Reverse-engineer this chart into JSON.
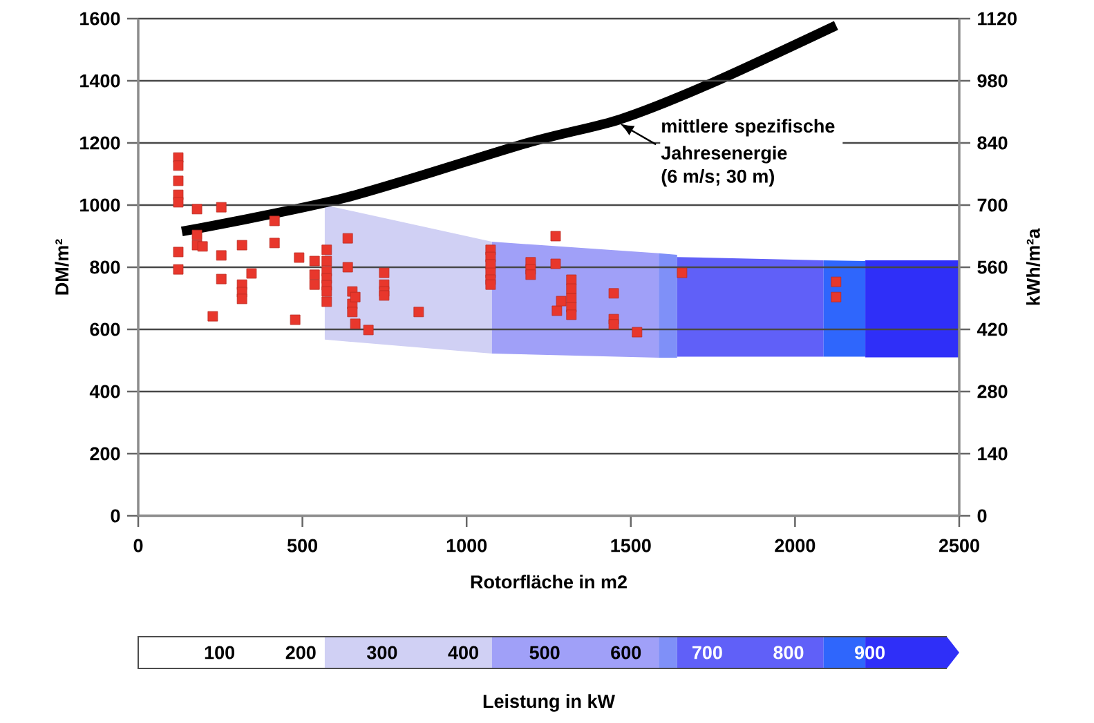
{
  "chart_data": {
    "type": "scatter",
    "xlabel": "Rotorfläche in m2",
    "ylabel": "DM/m²",
    "y2label": "kWh/m²a",
    "xlim": [
      0,
      2500
    ],
    "xticks": [
      0,
      500,
      1000,
      1500,
      2000,
      2500
    ],
    "ylim": [
      0,
      1600
    ],
    "yticks": [
      0,
      200,
      400,
      600,
      800,
      1000,
      1200,
      1400,
      1600
    ],
    "y2lim": [
      0,
      1120
    ],
    "y2ticks": [
      0,
      140,
      280,
      420,
      560,
      700,
      840,
      980,
      1120
    ],
    "grid": "y",
    "clabel": "Leistung in kW",
    "clim": [
      0,
      1010
    ],
    "cticks": [
      100,
      200,
      300,
      400,
      500,
      600,
      700,
      800,
      900
    ],
    "annotations": [
      {
        "text": "mittlere spezifische Jahresenergie",
        "x": 1467,
        "y": 1262
      },
      "(6 m/s; 30 m)"
    ],
    "series": [
      {
        "type": "area",
        "color": "#d0d0f4",
        "x": [
          568,
          1077
        ],
        "values": [
          null,
          null
        ],
        "upper": [
          1000,
          882
        ],
        "lower": [
          567,
          522
        ]
      },
      {
        "type": "area",
        "color": "#a0a0f8",
        "x": [
          1077,
          1585
        ],
        "values": [
          null,
          null
        ],
        "upper": [
          882,
          845
        ],
        "lower": [
          522,
          509
        ]
      },
      {
        "type": "area",
        "color": "#7f90f8",
        "x": [
          1585,
          1641
        ],
        "values": [
          null,
          null
        ],
        "upper": [
          845,
          840
        ],
        "lower": [
          509,
          509
        ]
      },
      {
        "type": "area",
        "color": "#6060f8",
        "x": [
          1641,
          2087
        ],
        "values": [
          null,
          null
        ],
        "upper": [
          833,
          822
        ],
        "lower": [
          512,
          512
        ]
      },
      {
        "type": "area",
        "color": "#2f66fc",
        "x": [
          2087,
          2214
        ],
        "values": [
          null,
          null
        ],
        "upper": [
          822,
          820
        ],
        "lower": [
          512,
          512
        ]
      },
      {
        "type": "area",
        "color": "#2f2ff8",
        "x": [
          2214,
          2500
        ],
        "values": [
          null,
          null
        ],
        "upper": [
          822,
          822
        ],
        "lower": [
          510,
          510
        ]
      },
      {
        "type": "line",
        "color": "#000000",
        "line_style": "solid",
        "x": [
          133,
          625,
          1185,
          1467,
          1747,
          2125
        ],
        "values": [
          915,
          1022,
          1200,
          1276,
          1393,
          1578
        ]
      },
      {
        "type": "scatter",
        "color": "#e8372c",
        "marker": "square",
        "x": [
          122,
          122,
          122,
          122,
          122,
          122,
          122,
          179,
          179,
          179,
          196,
          253,
          253,
          253,
          227,
          316,
          316,
          316,
          316,
          345,
          415,
          415,
          478,
          490,
          537,
          537,
          537,
          574,
          574,
          574,
          574,
          574,
          574,
          574,
          638,
          638,
          652,
          652,
          652,
          661,
          661,
          701,
          749,
          749,
          749,
          749,
          854,
          1073,
          1073,
          1073,
          1073,
          1073,
          1073,
          1195,
          1195,
          1195,
          1271,
          1271,
          1275,
          1288,
          1319,
          1319,
          1319,
          1319,
          1319,
          1448,
          1448,
          1448,
          1519,
          1656,
          2125,
          2125
        ],
        "values": [
          1153,
          1127,
          1078,
          1033,
          1009,
          849,
          793,
          987,
          904,
          871,
          867,
          993,
          838,
          762,
          642,
          871,
          744,
          720,
          698,
          780,
          949,
          878,
          631,
          831,
          820,
          776,
          744,
          856,
          820,
          787,
          764,
          742,
          722,
          689,
          893,
          800,
          722,
          682,
          656,
          704,
          618,
          598,
          782,
          744,
          722,
          709,
          656,
          856,
          833,
          809,
          782,
          760,
          744,
          816,
          793,
          776,
          900,
          811,
          660,
          691,
          760,
          731,
          700,
          671,
          647,
          716,
          633,
          616,
          591,
          782,
          753,
          704
        ]
      }
    ]
  }
}
